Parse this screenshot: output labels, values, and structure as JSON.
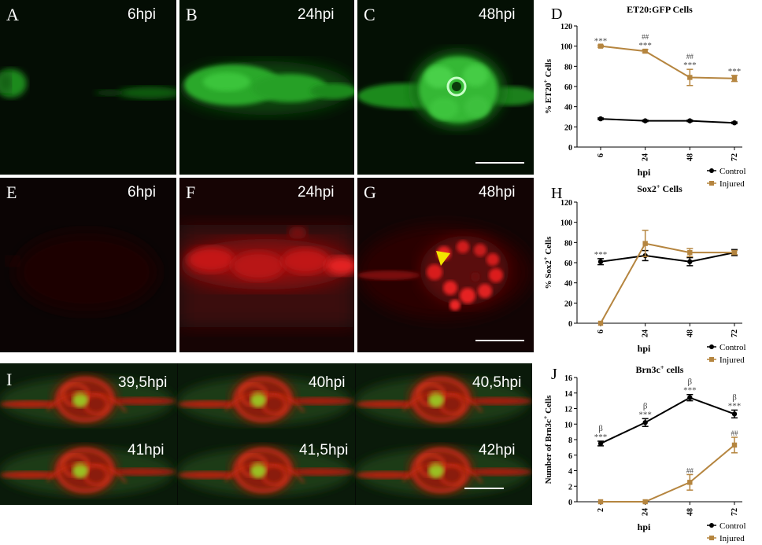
{
  "micrographs": {
    "row1": [
      {
        "letter": "A",
        "time": "6hpi"
      },
      {
        "letter": "B",
        "time": "24hpi"
      },
      {
        "letter": "C",
        "time": "48hpi"
      }
    ],
    "row2": [
      {
        "letter": "E",
        "time": "6hpi"
      },
      {
        "letter": "F",
        "time": "24hpi"
      },
      {
        "letter": "G",
        "time": "48hpi"
      }
    ],
    "timelapse": {
      "letter": "I",
      "frames": [
        "39,5hpi",
        "40hpi",
        "40,5hpi",
        "41hpi",
        "41,5hpi",
        "42hpi"
      ]
    },
    "colors": {
      "gfp": "#2fd62f",
      "red": "#e01818",
      "arrow": "#f2e400",
      "background": "#050805"
    }
  },
  "chart_data": [
    {
      "panel": "D",
      "type": "line",
      "title": "ET20:GFP Cells",
      "xlabel": "hpi",
      "ylabel": "% ET20+ Cells",
      "ylabel_base": "% ET20",
      "ylabel_sup": "+",
      "ylabel_tail": " Cells",
      "categories": [
        "6",
        "24",
        "48",
        "72"
      ],
      "ylim": [
        0,
        120
      ],
      "yticks": [
        "0",
        "20",
        "40",
        "60",
        "80",
        "100",
        "120"
      ],
      "series": [
        {
          "name": "Control",
          "color": "#000000",
          "values": [
            28,
            26,
            26,
            24
          ],
          "errors": [
            0.8,
            0.8,
            0.8,
            0.8
          ]
        },
        {
          "name": "Injured",
          "color": "#b5853f",
          "values": [
            100,
            95,
            69,
            68
          ],
          "errors": [
            1,
            1.5,
            8,
            3
          ]
        }
      ],
      "annotations": [
        {
          "x": 0,
          "lines": [
            "***"
          ]
        },
        {
          "x": 1,
          "lines": [
            "##",
            "***"
          ]
        },
        {
          "x": 2,
          "lines": [
            "##",
            "***"
          ]
        },
        {
          "x": 3,
          "lines": [
            "***"
          ]
        }
      ],
      "legend": "bottom-right"
    },
    {
      "panel": "H",
      "type": "line",
      "title": "Sox2+ Cells",
      "title_base": "Sox2",
      "title_sup": "+",
      "title_tail": " Cells",
      "xlabel": "hpi",
      "ylabel": "% Sox2+ Cells",
      "ylabel_base": "% Sox2",
      "ylabel_sup": "+",
      "ylabel_tail": " Cells",
      "categories": [
        "6",
        "24",
        "48",
        "72"
      ],
      "ylim": [
        0,
        120
      ],
      "yticks": [
        "0",
        "20",
        "40",
        "60",
        "80",
        "100",
        "120"
      ],
      "series": [
        {
          "name": "Control",
          "color": "#000000",
          "values": [
            61,
            67,
            61,
            70
          ],
          "errors": [
            3,
            5,
            4,
            3
          ]
        },
        {
          "name": "Injured",
          "color": "#b5853f",
          "values": [
            0,
            79,
            70,
            70
          ],
          "errors": [
            0,
            13,
            4,
            2
          ]
        }
      ],
      "annotations": [
        {
          "x": 0,
          "lines": [
            "***"
          ]
        }
      ],
      "legend": "bottom-right"
    },
    {
      "panel": "J",
      "type": "line",
      "title": "Brn3c+ cells",
      "title_base": "Brn3c",
      "title_sup": "+",
      "title_tail": " cells",
      "xlabel": "hpi",
      "ylabel": "Number of Brn3c+ Cells",
      "ylabel_base": "Number of Brn3c",
      "ylabel_sup": "+",
      "ylabel_tail": " Cells",
      "categories": [
        "2",
        "24",
        "48",
        "72"
      ],
      "ylim": [
        0,
        16
      ],
      "yticks": [
        "0",
        "2",
        "4",
        "6",
        "8",
        "10",
        "12",
        "14",
        "16"
      ],
      "series": [
        {
          "name": "Control",
          "color": "#000000",
          "values": [
            7.5,
            10.2,
            13.4,
            11.3
          ],
          "errors": [
            0.3,
            0.5,
            0.4,
            0.5
          ]
        },
        {
          "name": "Injured",
          "color": "#b5853f",
          "values": [
            0,
            0,
            2.5,
            7.3
          ],
          "errors": [
            0,
            0,
            1,
            1
          ]
        }
      ],
      "annotations": [
        {
          "x": 0,
          "lines": [
            "β",
            "***"
          ]
        },
        {
          "x": 1,
          "lines": [
            "β",
            "***"
          ]
        },
        {
          "x": 2,
          "lines": [
            "β",
            "***"
          ]
        },
        {
          "x": 3,
          "lines": [
            "β",
            "***"
          ]
        },
        {
          "x": 2,
          "lines": [
            "##"
          ],
          "series": 1
        },
        {
          "x": 3,
          "lines": [
            "##"
          ],
          "series": 1
        }
      ],
      "legend": "bottom-right"
    }
  ]
}
